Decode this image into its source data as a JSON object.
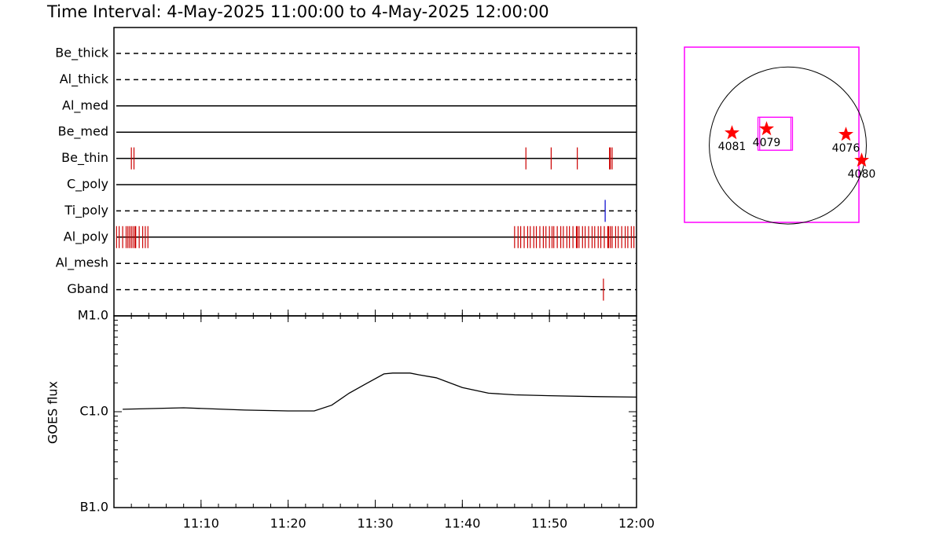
{
  "chart_data": [
    {
      "type": "timeline",
      "title": "Time Interval:  4-May-2025 11:00:00 to  4-May-2025 12:00:00",
      "xlim": [
        0,
        60
      ],
      "rows": [
        {
          "name": "Be_thick",
          "style": "dashed",
          "events": []
        },
        {
          "name": "Al_thick",
          "style": "dashed",
          "events": []
        },
        {
          "name": "Al_med",
          "style": "solid",
          "events": []
        },
        {
          "name": "Be_med",
          "style": "solid",
          "events": []
        },
        {
          "name": "Be_thin",
          "style": "solid",
          "color": "#cc0000",
          "events": [
            2.0,
            2.3,
            47.3,
            50.2,
            53.2,
            56.9,
            57.0,
            57.2
          ]
        },
        {
          "name": "C_poly",
          "style": "solid",
          "events": []
        },
        {
          "name": "Ti_poly",
          "style": "dashed",
          "color": "#0000cc",
          "events": [
            56.4
          ]
        },
        {
          "name": "Al_poly",
          "style": "solid",
          "color": "#cc0000",
          "events": [
            0.3,
            0.6,
            1.0,
            1.4,
            1.6,
            1.8,
            2.0,
            2.2,
            2.4,
            2.5,
            2.9,
            3.3,
            3.6,
            3.9,
            46.0,
            46.4,
            46.7,
            47.1,
            47.5,
            47.8,
            48.2,
            48.5,
            48.9,
            49.3,
            49.6,
            50.0,
            50.3,
            50.5,
            50.9,
            51.3,
            51.6,
            52.0,
            52.3,
            52.7,
            53.1,
            53.2,
            53.4,
            53.8,
            54.1,
            54.5,
            54.9,
            55.2,
            55.6,
            55.9,
            56.3,
            56.7,
            56.8,
            57.0,
            57.2,
            57.6,
            57.9,
            58.3,
            58.7,
            59.0,
            59.4,
            59.7
          ]
        },
        {
          "name": "Al_mesh",
          "style": "dashed",
          "events": []
        },
        {
          "name": "Gband",
          "style": "dashed",
          "color": "#cc0000",
          "events": [
            56.2
          ]
        }
      ]
    },
    {
      "type": "line",
      "ylabel": "GOES flux",
      "log": true,
      "xlim": [
        0,
        60
      ],
      "xticks": [
        {
          "value": 10,
          "label": "11:10"
        },
        {
          "value": 20,
          "label": "11:20"
        },
        {
          "value": 30,
          "label": "11:30"
        },
        {
          "value": 40,
          "label": "11:40"
        },
        {
          "value": 50,
          "label": "11:50"
        },
        {
          "value": 60,
          "label": "12:00"
        }
      ],
      "ylim": [
        1e-07,
        1e-05
      ],
      "yticks": [
        {
          "value": 1e-07,
          "label": "B1.0"
        },
        {
          "value": 1e-06,
          "label": "C1.0"
        },
        {
          "value": 1e-05,
          "label": "M1.0"
        }
      ],
      "x": [
        1,
        8,
        15,
        20,
        23,
        25,
        27,
        29,
        31,
        32,
        34,
        35,
        37,
        40,
        43,
        46,
        50,
        55,
        60
      ],
      "series": [
        {
          "color": "#000000",
          "values": [
            1.06e-06,
            1.1e-06,
            1.04e-06,
            1.02e-06,
            1.02e-06,
            1.17e-06,
            1.56e-06,
            1.97e-06,
            2.48e-06,
            2.53e-06,
            2.53e-06,
            2.43e-06,
            2.26e-06,
            1.79e-06,
            1.56e-06,
            1.5e-06,
            1.47e-06,
            1.44e-06,
            1.42e-06
          ]
        }
      ]
    },
    {
      "type": "map",
      "xlim": [
        -1250,
        860
      ],
      "ylim": [
        -930,
        1190
      ],
      "sun_radius": 950,
      "frame_color": "#ff00ff",
      "marker_color": "#ff0000",
      "boxes": [
        {
          "x": [
            -361,
            38
          ],
          "y": [
            -57,
            342
          ]
        },
        {
          "x": [
            -340,
            57
          ],
          "y": [
            -57,
            342
          ]
        }
      ],
      "regions": [
        {
          "name": "4081",
          "x": -675,
          "y": 152
        },
        {
          "name": "4079",
          "x": -257,
          "y": 200
        },
        {
          "name": "4076",
          "x": 703,
          "y": 133
        },
        {
          "name": "4080",
          "x": 893,
          "y": -180
        }
      ]
    }
  ]
}
